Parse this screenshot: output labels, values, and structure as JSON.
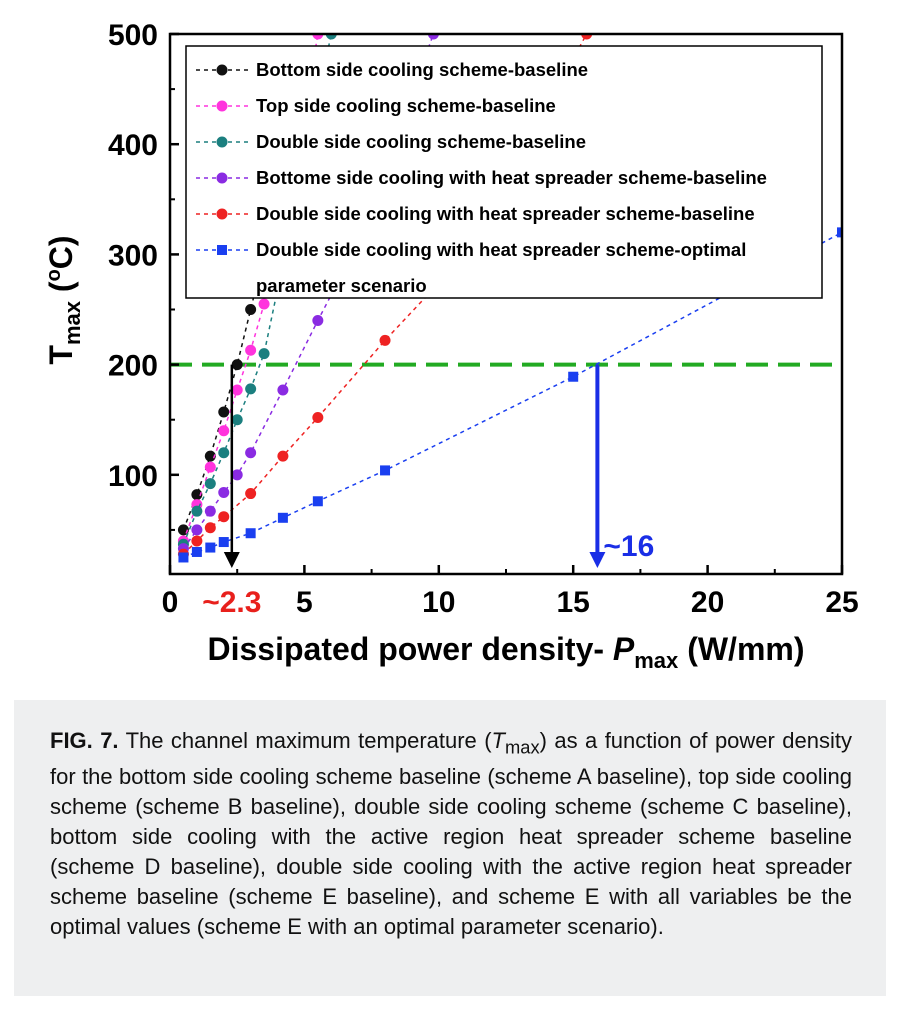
{
  "chart_data": {
    "type": "line",
    "xlabel": "Dissipated power density- ",
    "xlabel_italic": "P",
    "xlabel_sub": "max",
    "xlabel_unit": " (W/mm)",
    "ylabel_main": "T",
    "ylabel_sub": "max",
    "ylabel_unit_open": " (",
    "ylabel_unit_sup": "o",
    "ylabel_unit_rest": "C)",
    "xlim": [
      0,
      25
    ],
    "ylim": [
      10,
      500
    ],
    "xticks": [
      0,
      5,
      10,
      15,
      20,
      25
    ],
    "yticks": [
      100,
      200,
      300,
      400,
      500
    ],
    "threshold_y": 200,
    "threshold_color": "#22aa22",
    "annotations": [
      {
        "x": 2.3,
        "label": "~2.3",
        "color": "#e8201c"
      },
      {
        "x": 15.9,
        "label": "~16",
        "color": "#1a2ee6"
      }
    ],
    "legend_placement": "top-right",
    "series": [
      {
        "name": "Bottom side cooling scheme-baseline",
        "color": "#111111",
        "marker": "circle",
        "x": [
          0.5,
          1.0,
          1.5,
          2.0,
          2.5,
          3.0,
          3.5
        ],
        "y": [
          50,
          82,
          117,
          157,
          200,
          250,
          300
        ]
      },
      {
        "name": "Top side cooling scheme-baseline",
        "color": "#ff33dd",
        "marker": "circle",
        "x": [
          0.5,
          1.0,
          1.5,
          2.0,
          2.5,
          3.0,
          3.5,
          4.0,
          4.5,
          5.5
        ],
        "y": [
          40,
          73,
          107,
          140,
          177,
          213,
          255,
          300,
          350,
          500
        ]
      },
      {
        "name": "Double side cooling scheme-baseline",
        "color": "#1b7f7f",
        "marker": "circle",
        "x": [
          0.5,
          1.0,
          1.5,
          2.0,
          2.5,
          3.0,
          3.5,
          6.0
        ],
        "y": [
          37,
          67,
          92,
          120,
          150,
          178,
          210,
          500
        ]
      },
      {
        "name": "Bottome side cooling with heat spreader scheme-baseline",
        "color": "#8a2be2",
        "marker": "circle",
        "x": [
          0.5,
          1.0,
          1.5,
          2.0,
          2.5,
          3.0,
          4.2,
          5.5,
          7.0,
          9.8
        ],
        "y": [
          33,
          50,
          67,
          84,
          100,
          120,
          177,
          240,
          310,
          500
        ]
      },
      {
        "name": "Double side cooling with heat spreader scheme-baseline",
        "color": "#ee2222",
        "marker": "circle",
        "x": [
          0.5,
          1.0,
          1.5,
          2.0,
          3.0,
          4.2,
          5.5,
          8.0,
          11.0,
          15.5
        ],
        "y": [
          28,
          40,
          52,
          62,
          83,
          117,
          152,
          222,
          300,
          500
        ]
      },
      {
        "name": "Double side cooling with heat spreader scheme-optimal parameter scenario",
        "color": "#1a3ff0",
        "marker": "square",
        "x": [
          0.5,
          1.0,
          1.5,
          2.0,
          3.0,
          4.2,
          5.5,
          8.0,
          15.0,
          25.0
        ],
        "y": [
          25,
          30,
          34,
          39,
          47,
          61,
          76,
          104,
          189,
          320
        ]
      }
    ]
  },
  "legend_lines": [
    "Bottom side cooling scheme-baseline",
    "Top side cooling scheme-baseline",
    "Double side cooling scheme-baseline",
    "Bottome side cooling with heat spreader scheme-baseline",
    "Double side cooling with heat spreader scheme-baseline",
    "Double side cooling with heat spreader scheme-optimal",
    "parameter scenario"
  ],
  "caption": {
    "label": "FIG. 7.",
    "text_1": " The channel maximum temperature (",
    "text_T": "T",
    "text_sub": "max",
    "text_2": ") as a function of power density for the bottom side cooling scheme baseline (scheme A baseline), top side cooling scheme (scheme B baseline), double side cooling scheme (scheme C baseline), bottom side cooling with the active region heat spreader scheme baseline (scheme D baseline), double side cooling with the active region heat spreader scheme baseline (scheme E baseline), and scheme E with all variables be the optimal values (scheme E with an optimal parameter scenario)."
  }
}
